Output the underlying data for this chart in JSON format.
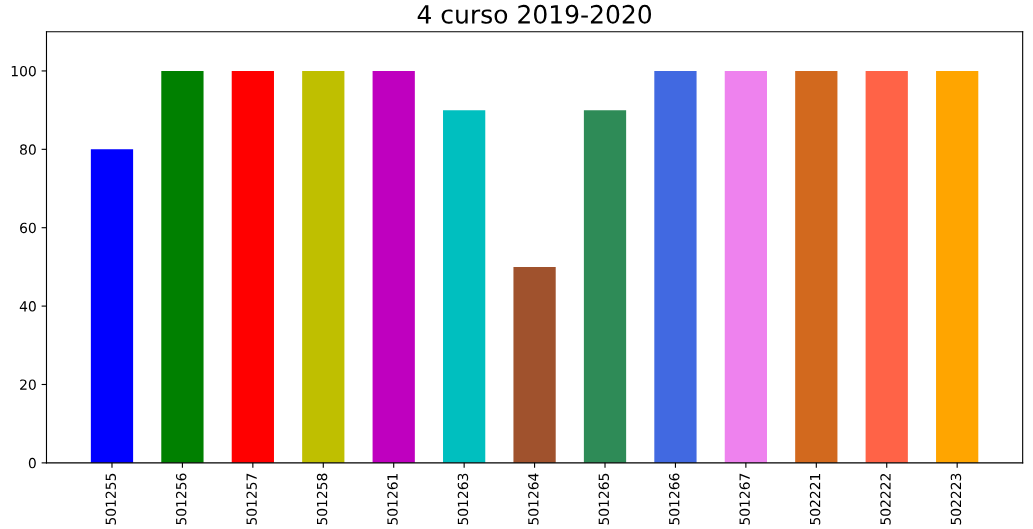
{
  "chart_data": {
    "type": "bar",
    "title": "4 curso 2019-2020",
    "categories": [
      "501255",
      "501256",
      "501257",
      "501258",
      "501261",
      "501263",
      "501264",
      "501265",
      "501266",
      "501267",
      "502221",
      "502222",
      "502223"
    ],
    "values": [
      80,
      100,
      100,
      100,
      100,
      90,
      50,
      90,
      100,
      100,
      100,
      100,
      100
    ],
    "colors": [
      "#0000ff",
      "#008000",
      "#ff0000",
      "#bfbf00",
      "#bf00bf",
      "#00bfbf",
      "#a0522d",
      "#2e8b57",
      "#4169e1",
      "#ee82ee",
      "#d2691e",
      "#ff6347",
      "#ffa500"
    ],
    "ylim": [
      0,
      110
    ],
    "yticks": [
      0,
      20,
      40,
      60,
      80,
      100
    ],
    "grid": false,
    "legend": false
  }
}
